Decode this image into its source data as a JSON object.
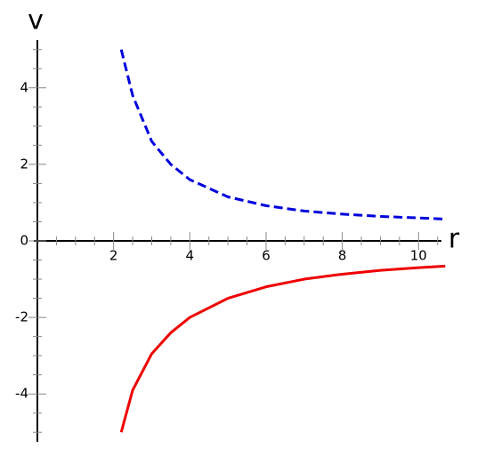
{
  "chart_data": {
    "type": "line",
    "xlabel": "r",
    "ylabel": "v",
    "x": [
      2.2,
      2.5,
      3,
      3.5,
      4,
      5,
      6,
      7,
      8,
      9,
      10,
      10.7
    ],
    "series": [
      {
        "color": "#0000dd",
        "dashed": true,
        "values": [
          5.0,
          3.8,
          2.6,
          2.0,
          1.6,
          1.15,
          0.92,
          0.78,
          0.7,
          0.64,
          0.6,
          0.57
        ]
      },
      {
        "color": "#ee0000",
        "dashed": false,
        "values": [
          -5.0,
          -3.9,
          -2.95,
          -2.4,
          -2.0,
          -1.5,
          -1.2,
          -1.0,
          -0.87,
          -0.77,
          -0.7,
          -0.66
        ]
      }
    ],
    "xlim": [
      0,
      10.6
    ],
    "ylim": [
      -5.25,
      5.25
    ],
    "xticks": [
      2,
      4,
      6,
      8,
      10
    ],
    "yticks": [
      -4,
      -2,
      0,
      2,
      4
    ],
    "xminorticks": [
      1,
      3,
      5,
      7,
      9,
      0.5,
      1.5,
      2.5,
      3.5,
      4.5,
      5.5,
      6.5,
      7.5,
      8.5,
      9.5,
      10.5
    ],
    "yminorticks": [
      -5,
      -3,
      -1,
      1,
      3,
      5,
      -4.5,
      -3.5,
      -2.5,
      -1.5,
      -0.5,
      0.5,
      1.5,
      2.5,
      3.5,
      4.5
    ]
  }
}
